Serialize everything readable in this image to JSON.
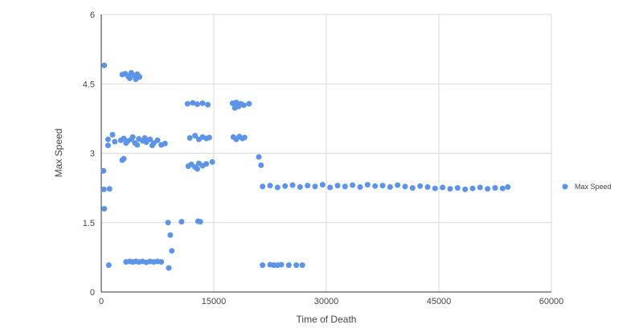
{
  "chart_data": {
    "type": "scatter",
    "xlabel": "Time of Death",
    "ylabel": "Max Speed",
    "xlim": [
      0,
      60000
    ],
    "ylim": [
      0,
      6
    ],
    "x_ticks": [
      0,
      15000,
      30000,
      45000,
      60000
    ],
    "x_tick_labels": [
      "0",
      "15000",
      "30000",
      "45000",
      "60000"
    ],
    "y_ticks": [
      0,
      1.5,
      3,
      4.5,
      6
    ],
    "y_tick_labels": [
      "0",
      "1.5",
      "3",
      "4.5",
      "6"
    ],
    "grid": true,
    "legend_position": "right",
    "series": [
      {
        "name": "Max Speed",
        "color": "#5b94e8",
        "points": [
          [
            400,
            4.9
          ],
          [
            300,
            2.62
          ],
          [
            350,
            2.22
          ],
          [
            400,
            1.8
          ],
          [
            900,
            3.3
          ],
          [
            900,
            3.17
          ],
          [
            1000,
            0.58
          ],
          [
            1100,
            2.23
          ],
          [
            1500,
            3.4
          ],
          [
            1800,
            3.25
          ],
          [
            2800,
            2.85
          ],
          [
            3000,
            2.88
          ],
          [
            2600,
            3.28
          ],
          [
            3000,
            3.32
          ],
          [
            3500,
            3.26
          ],
          [
            4000,
            3.3
          ],
          [
            4500,
            3.22
          ],
          [
            5000,
            3.31
          ],
          [
            5500,
            3.27
          ],
          [
            6000,
            3.24
          ],
          [
            6500,
            3.3
          ],
          [
            7000,
            3.22
          ],
          [
            7500,
            3.28
          ],
          [
            8000,
            3.18
          ],
          [
            8500,
            3.21
          ],
          [
            3300,
            3.22
          ],
          [
            4200,
            3.35
          ],
          [
            4800,
            3.18
          ],
          [
            5800,
            3.33
          ],
          [
            6800,
            3.17
          ],
          [
            2800,
            4.7
          ],
          [
            3200,
            4.72
          ],
          [
            3600,
            4.66
          ],
          [
            4000,
            4.74
          ],
          [
            4400,
            4.68
          ],
          [
            4800,
            4.71
          ],
          [
            5100,
            4.65
          ],
          [
            3800,
            4.62
          ],
          [
            4600,
            4.6
          ],
          [
            3300,
            0.65
          ],
          [
            3800,
            0.66
          ],
          [
            4200,
            0.65
          ],
          [
            4600,
            0.66
          ],
          [
            5000,
            0.65
          ],
          [
            5500,
            0.66
          ],
          [
            6000,
            0.64
          ],
          [
            6500,
            0.66
          ],
          [
            7000,
            0.65
          ],
          [
            7500,
            0.66
          ],
          [
            8000,
            0.65
          ],
          [
            8900,
            1.5
          ],
          [
            9000,
            0.52
          ],
          [
            9200,
            1.23
          ],
          [
            9400,
            0.89
          ],
          [
            10700,
            1.52
          ],
          [
            11500,
            4.07
          ],
          [
            12200,
            4.09
          ],
          [
            12800,
            4.06
          ],
          [
            13500,
            4.08
          ],
          [
            14200,
            4.05
          ],
          [
            11800,
            3.33
          ],
          [
            12500,
            3.38
          ],
          [
            13000,
            3.3
          ],
          [
            13500,
            3.35
          ],
          [
            14000,
            3.32
          ],
          [
            14400,
            3.34
          ],
          [
            11600,
            2.72
          ],
          [
            12000,
            2.76
          ],
          [
            12500,
            2.7
          ],
          [
            13000,
            2.78
          ],
          [
            13500,
            2.73
          ],
          [
            14000,
            2.77
          ],
          [
            14800,
            2.81
          ],
          [
            12800,
            2.66
          ],
          [
            12900,
            1.53
          ],
          [
            13200,
            1.52
          ],
          [
            17500,
            4.08
          ],
          [
            17800,
            3.98
          ],
          [
            18000,
            4.05
          ],
          [
            18300,
            4.01
          ],
          [
            18600,
            4.07
          ],
          [
            19000,
            4.04
          ],
          [
            19700,
            4.07
          ],
          [
            18000,
            4.1
          ],
          [
            17600,
            3.35
          ],
          [
            18000,
            3.3
          ],
          [
            18400,
            3.36
          ],
          [
            18800,
            3.32
          ],
          [
            19100,
            3.34
          ],
          [
            21000,
            2.92
          ],
          [
            21300,
            2.74
          ],
          [
            21500,
            2.28
          ],
          [
            22500,
            2.3
          ],
          [
            23500,
            2.26
          ],
          [
            24500,
            2.29
          ],
          [
            25500,
            2.31
          ],
          [
            26500,
            2.27
          ],
          [
            27500,
            2.3
          ],
          [
            28500,
            2.28
          ],
          [
            29500,
            2.32
          ],
          [
            30500,
            2.26
          ],
          [
            31500,
            2.3
          ],
          [
            32500,
            2.28
          ],
          [
            33500,
            2.31
          ],
          [
            34500,
            2.27
          ],
          [
            35500,
            2.32
          ],
          [
            36500,
            2.29
          ],
          [
            37500,
            2.3
          ],
          [
            38500,
            2.27
          ],
          [
            39500,
            2.31
          ],
          [
            40500,
            2.28
          ],
          [
            41500,
            2.25
          ],
          [
            42500,
            2.29
          ],
          [
            43500,
            2.27
          ],
          [
            44500,
            2.24
          ],
          [
            45500,
            2.26
          ],
          [
            46500,
            2.23
          ],
          [
            47500,
            2.25
          ],
          [
            48500,
            2.22
          ],
          [
            49500,
            2.24
          ],
          [
            50500,
            2.26
          ],
          [
            51500,
            2.23
          ],
          [
            52500,
            2.25
          ],
          [
            53500,
            2.24
          ],
          [
            54200,
            2.27
          ],
          [
            21500,
            0.58
          ],
          [
            22500,
            0.59
          ],
          [
            23000,
            0.58
          ],
          [
            23500,
            0.58
          ],
          [
            24000,
            0.59
          ],
          [
            25000,
            0.58
          ],
          [
            26000,
            0.58
          ],
          [
            26800,
            0.58
          ]
        ]
      }
    ]
  },
  "legend": {
    "label": "Max Speed"
  }
}
